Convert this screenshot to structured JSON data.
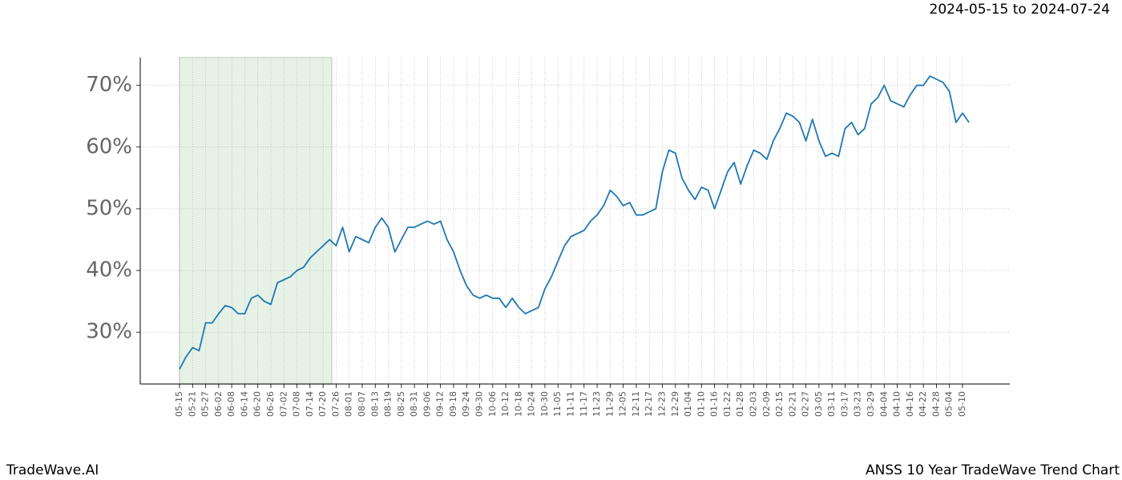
{
  "chart_data": {
    "type": "line",
    "title": "ANSS 10 Year TradeWave Trend Chart",
    "subtitle": "2024-05-15 to 2024-07-24",
    "brand": "TradeWave.AI",
    "categories": [
      "05-15",
      null,
      "05-21",
      null,
      "05-27",
      null,
      "06-02",
      null,
      "06-08",
      null,
      "06-14",
      null,
      "06-20",
      null,
      "06-26",
      null,
      "07-02",
      null,
      "07-08",
      null,
      "07-14",
      null,
      "07-20",
      null,
      "07-26",
      null,
      "08-01",
      null,
      "08-07",
      null,
      "08-13",
      null,
      "08-19",
      null,
      "08-25",
      null,
      "08-31",
      null,
      "09-06",
      null,
      "09-12",
      null,
      "09-18",
      null,
      "09-24",
      null,
      "09-30",
      null,
      "10-06",
      null,
      "10-12",
      null,
      "10-18",
      null,
      "10-24",
      null,
      "10-30",
      null,
      "11-05",
      null,
      "11-11",
      null,
      "11-17",
      null,
      "11-23",
      null,
      "11-29",
      null,
      "12-05",
      null,
      "12-11",
      null,
      "12-17",
      null,
      "12-23",
      null,
      "12-29",
      null,
      "01-04",
      null,
      "01-10",
      null,
      "01-16",
      null,
      "01-22",
      null,
      "01-28",
      null,
      "02-03",
      null,
      "02-09",
      null,
      "02-15",
      null,
      "02-21",
      null,
      "02-27",
      null,
      "03-05",
      null,
      "03-11",
      null,
      "03-17",
      null,
      "03-23",
      null,
      "03-29",
      null,
      "04-04",
      null,
      "04-10",
      null,
      "04-16",
      null,
      "04-22",
      null,
      "04-28",
      null,
      "05-04",
      null,
      "05-10",
      null
    ],
    "series": [
      {
        "name": "ANSS",
        "color": "#1f77b4",
        "values": [
          24,
          26,
          27.5,
          27,
          31.5,
          31.5,
          33,
          34.3,
          34,
          33,
          33,
          35.5,
          36,
          35,
          34.5,
          38,
          38.5,
          39,
          40,
          40.5,
          42,
          43,
          44,
          45,
          44,
          47,
          43,
          45.5,
          45,
          44.5,
          47,
          48.5,
          47,
          43,
          45,
          47,
          47,
          47.5,
          48,
          47.5,
          48,
          45,
          43,
          40,
          37.5,
          36,
          35.5,
          36,
          35.5,
          35.5,
          34,
          35.5,
          34,
          33,
          33.5,
          34,
          37,
          39,
          41.5,
          44,
          45.5,
          46,
          46.5,
          48,
          49,
          50.5,
          53,
          52,
          50.5,
          51,
          49,
          49,
          49.5,
          50,
          56,
          59.5,
          59,
          55,
          53,
          51.5,
          53.5,
          53,
          50,
          53,
          56,
          57.5,
          54,
          57,
          59.5,
          59,
          58,
          61,
          63,
          65.5,
          65,
          64,
          61,
          64.5,
          61,
          58.5,
          59,
          58.5,
          63,
          64,
          62,
          63,
          67,
          68,
          70,
          67.5,
          67,
          66.5,
          68.5,
          70,
          70,
          71.5,
          71,
          70.5,
          69,
          64,
          65.5,
          64
        ]
      }
    ],
    "ylim": [
      21.6,
      74.5
    ],
    "yticks": [
      {
        "value": 30,
        "label": "30%"
      },
      {
        "value": 40,
        "label": "40%"
      },
      {
        "value": 50,
        "label": "50%"
      },
      {
        "value": 60,
        "label": "60%"
      },
      {
        "value": 70,
        "label": "70%"
      }
    ],
    "grid": true,
    "shade_color": "#e6f2e6"
  }
}
